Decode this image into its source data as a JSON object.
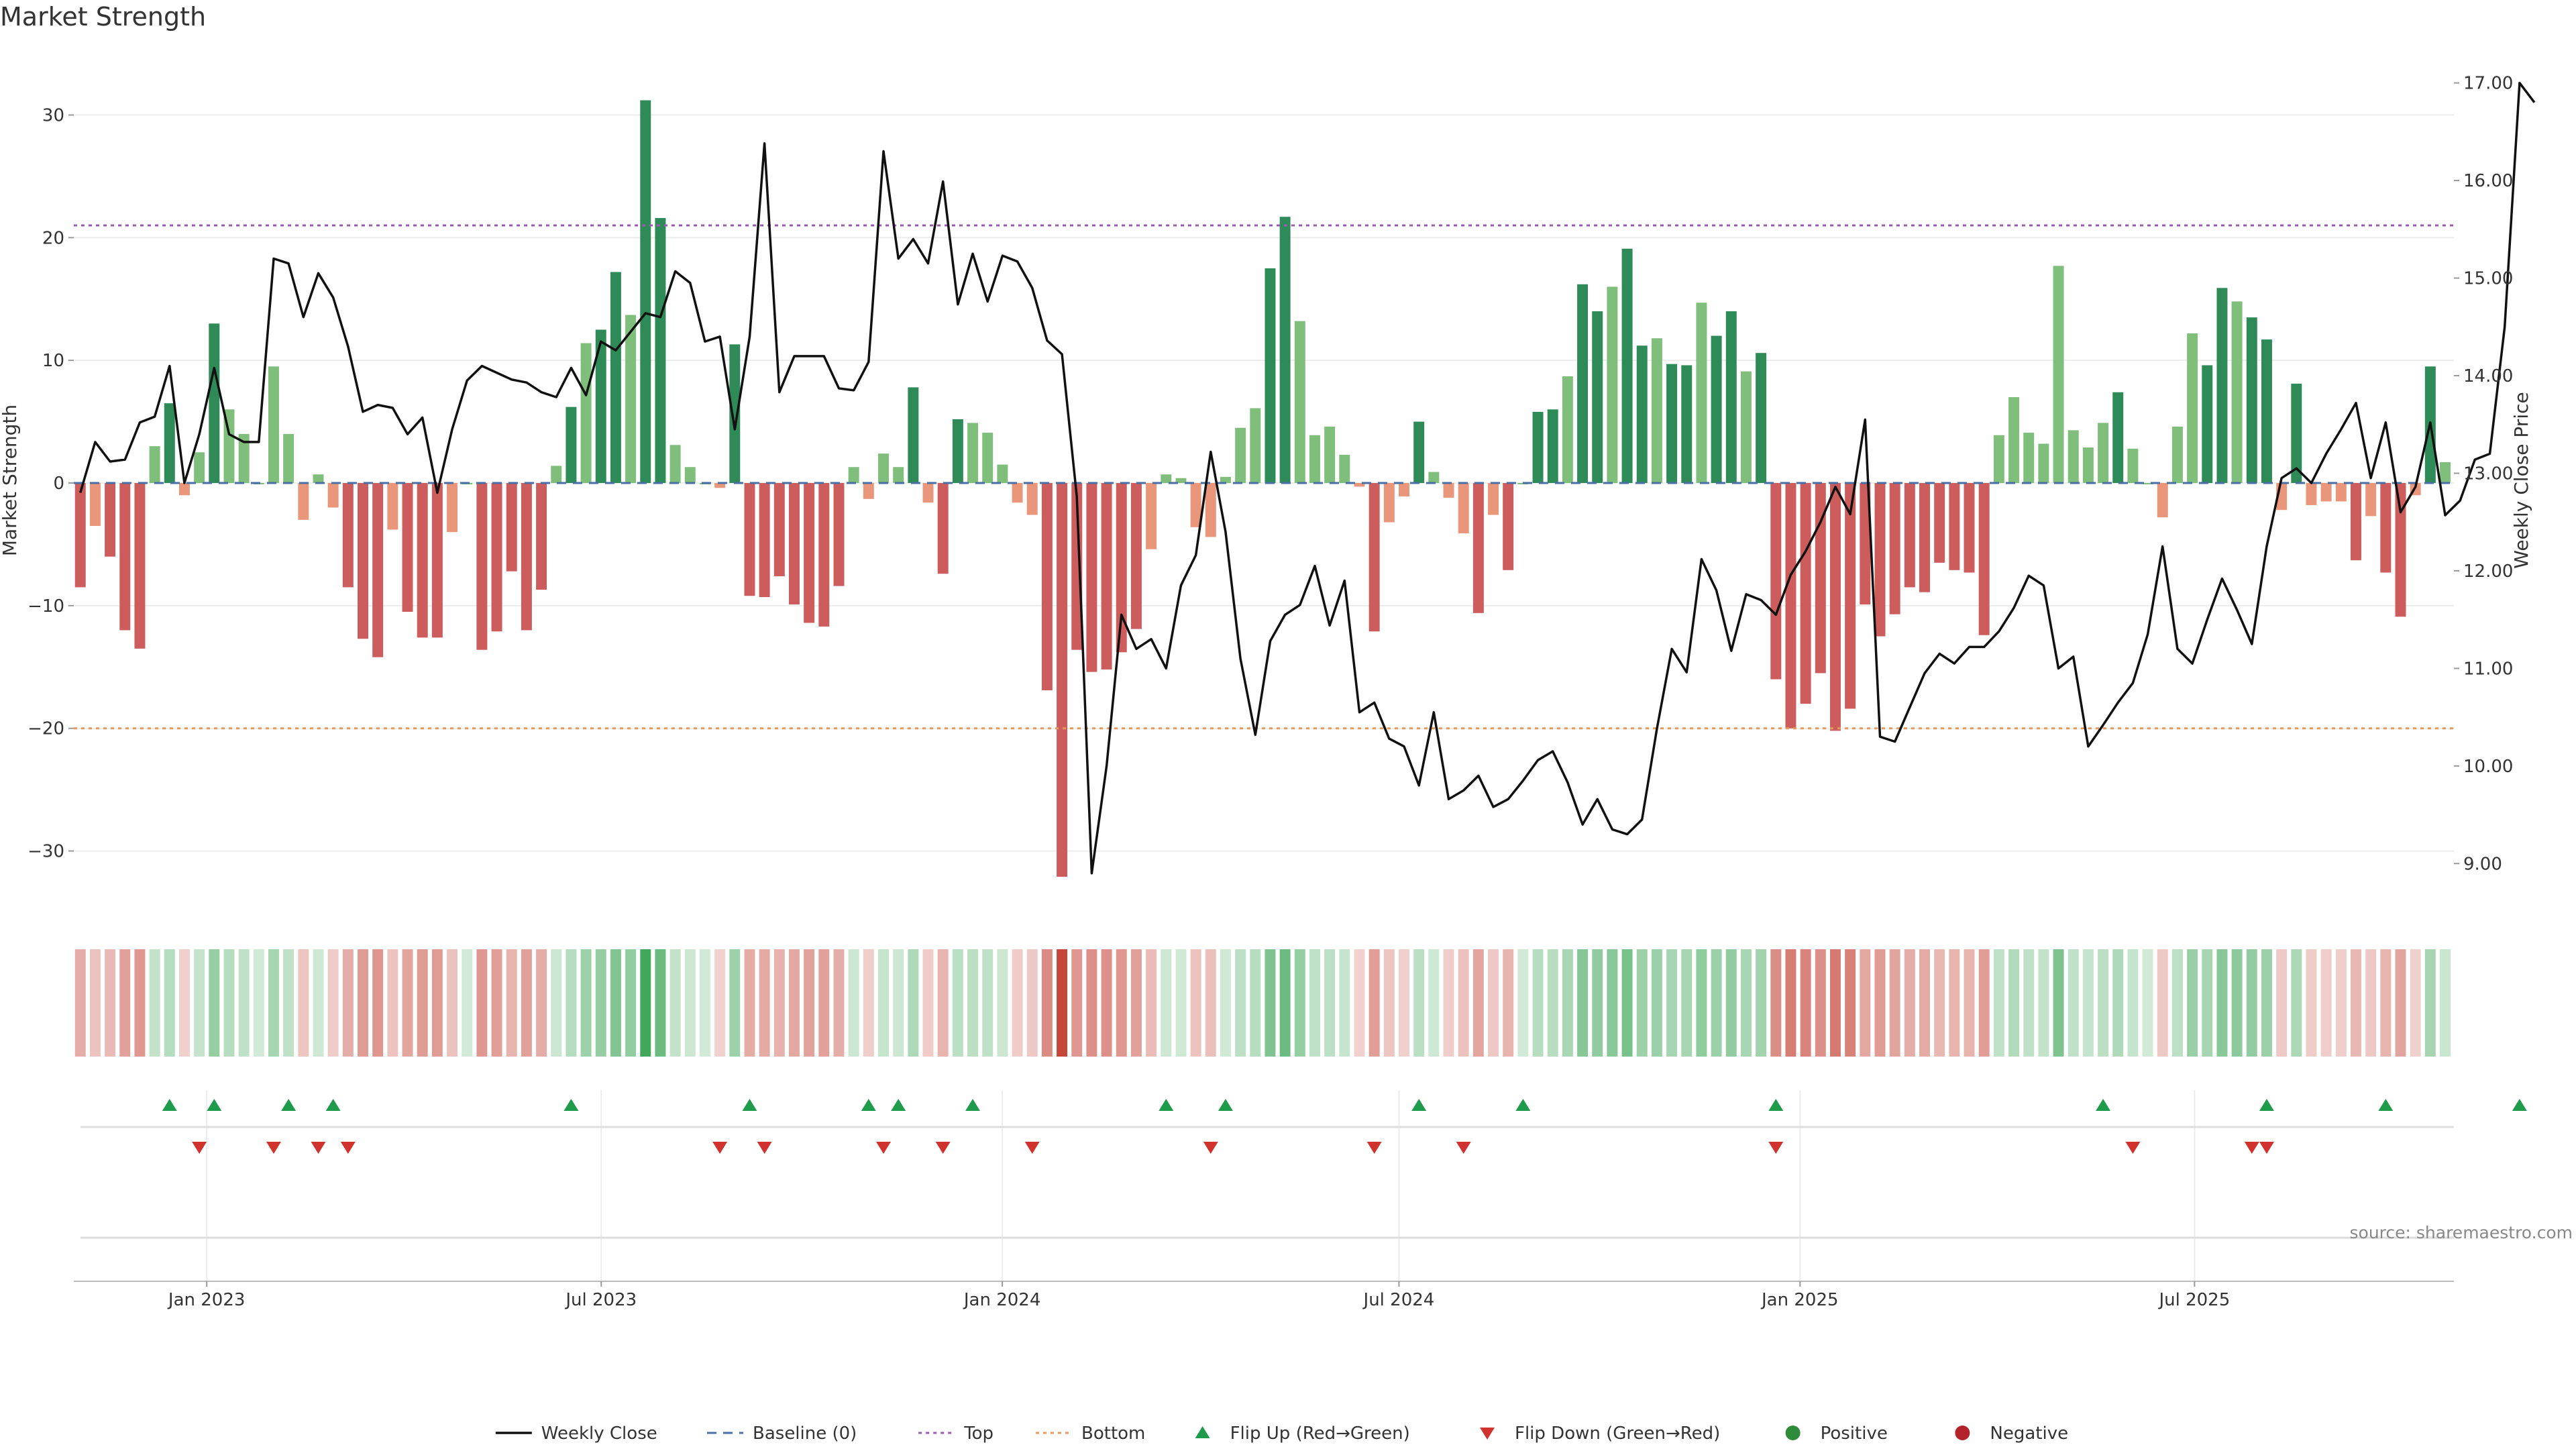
{
  "chart_data": {
    "type": "bar",
    "title": "Market Strength",
    "ylabel": "Market Strength",
    "y2label": "Weekly Close Price",
    "ylim": [
      -35,
      35
    ],
    "y2lim": [
      8.5,
      17.3
    ],
    "yticks": [
      -30,
      -20,
      -10,
      0,
      10,
      20,
      30
    ],
    "yticklabels": [
      "−30",
      "−20",
      "−10",
      "0",
      "10",
      "20",
      "30"
    ],
    "y2ticks": [
      9,
      10,
      11,
      12,
      13,
      14,
      15,
      16,
      17
    ],
    "y2ticklabels": [
      "9.00",
      "10.00",
      "11.00",
      "12.00",
      "13.00",
      "14.00",
      "15.00",
      "16.00",
      "17.00"
    ],
    "x_start": "2022-11-04",
    "x_end": "2025-10-24",
    "x_range": [
      "2022-11-01",
      "2025-10-28"
    ],
    "xticks": [
      {
        "date": "2023-01-01",
        "label": "Jan 2023"
      },
      {
        "date": "2023-07-01",
        "label": "Jul 2023"
      },
      {
        "date": "2024-01-01",
        "label": "Jan 2024"
      },
      {
        "date": "2024-07-01",
        "label": "Jul 2024"
      },
      {
        "date": "2025-01-01",
        "label": "Jan 2025"
      },
      {
        "date": "2025-07-01",
        "label": "Jul 2025"
      }
    ],
    "top_line": 21,
    "bottom_line": -20,
    "strength": [
      -8.5,
      -3.5,
      -6,
      -12,
      -13.5,
      3,
      6.5,
      -1,
      2.5,
      13,
      6,
      4,
      0,
      9.5,
      4,
      -3,
      0.7,
      -2,
      -8.5,
      -12.7,
      -14.2,
      -3.8,
      -10.5,
      -12.6,
      -12.6,
      -4,
      0,
      -13.6,
      -12.1,
      -7.2,
      -12,
      -8.7,
      1.4,
      6.2,
      11.4,
      12.5,
      17.2,
      13.7,
      31.2,
      21.6,
      3.1,
      1.3,
      0,
      -0.4,
      11.3,
      -9.2,
      -9.3,
      -7.6,
      -9.9,
      -11.4,
      -11.7,
      -8.4,
      1.3,
      -1.3,
      2.4,
      1.3,
      7.8,
      -1.6,
      -7.4,
      5.2,
      4.9,
      4.1,
      1.5,
      -1.6,
      -2.6,
      -16.9,
      -32.1,
      -13.6,
      -15.4,
      -15.2,
      -13.8,
      -11.9,
      -5.4,
      0.7,
      0.4,
      -3.6,
      -4.4,
      0.5,
      4.5,
      6.1,
      17.5,
      21.7,
      13.2,
      3.9,
      4.6,
      2.3,
      -0.3,
      -12.1,
      -3.2,
      -1.1,
      5,
      0.9,
      -1.2,
      -4.1,
      -10.6,
      -2.6,
      -7.1,
      0,
      5.8,
      6,
      8.7,
      16.2,
      14,
      16,
      19.1,
      11.2,
      11.8,
      9.7,
      9.6,
      14.7,
      12,
      14,
      9.1,
      10.6,
      -16,
      -20,
      -18,
      -15.5,
      -20.2,
      -18.4,
      -9.9,
      -12.5,
      -10.7,
      -8.5,
      -8.9,
      -6.5,
      -7.1,
      -7.3,
      -12.4,
      3.9,
      7,
      4.1,
      3.2,
      17.7,
      4.3,
      2.9,
      4.9,
      7.4,
      2.8,
      0,
      -2.8,
      4.6,
      12.2,
      9.6,
      15.9,
      14.8,
      13.5,
      11.7,
      -2.2,
      8.1,
      -1.8,
      -1.5,
      -1.5,
      -6.3,
      -2.7,
      -7.3,
      -10.9,
      -1,
      9.5,
      1.7
    ],
    "close": [
      12.8,
      13.32,
      13.12,
      13.14,
      13.52,
      13.58,
      14.1,
      12.9,
      13.4,
      14.08,
      13.4,
      13.32,
      13.32,
      15.2,
      15.15,
      14.6,
      15.05,
      14.8,
      14.3,
      13.63,
      13.7,
      13.67,
      13.4,
      13.57,
      12.8,
      13.45,
      13.95,
      14.1,
      14.03,
      13.96,
      13.93,
      13.83,
      13.78,
      14.08,
      13.8,
      14.35,
      14.26,
      14.45,
      14.64,
      14.6,
      15.07,
      14.95,
      14.35,
      14.4,
      13.45,
      14.4,
      16.38,
      13.83,
      14.2,
      14.2,
      14.2,
      13.87,
      13.85,
      14.14,
      16.3,
      15.2,
      15.4,
      15.15,
      15.99,
      14.73,
      15.25,
      14.76,
      15.23,
      15.17,
      14.9,
      14.36,
      14.22,
      12.76,
      8.9,
      10.0,
      11.55,
      11.2,
      11.3,
      11.0,
      11.85,
      12.16,
      13.22,
      12.4,
      11.1,
      10.32,
      11.28,
      11.55,
      11.65,
      12.05,
      11.44,
      11.9,
      10.55,
      10.65,
      10.28,
      10.2,
      9.8,
      10.55,
      9.66,
      9.75,
      9.9,
      9.58,
      9.66,
      9.85,
      10.06,
      10.15,
      9.83,
      9.4,
      9.66,
      9.35,
      9.3,
      9.45,
      10.38,
      11.2,
      10.96,
      12.12,
      11.8,
      11.18,
      11.76,
      11.7,
      11.55,
      11.96,
      12.2,
      12.5,
      12.86,
      12.58,
      13.55,
      10.3,
      10.25,
      10.6,
      10.95,
      11.15,
      11.05,
      11.22,
      11.22,
      11.38,
      11.62,
      11.95,
      11.85,
      11.0,
      11.12,
      10.2,
      10.42,
      10.65,
      10.85,
      11.35,
      12.25,
      11.2,
      11.05,
      11.5,
      11.92,
      11.6,
      11.25,
      12.25,
      12.95,
      13.05,
      12.9,
      13.2,
      13.45,
      13.72,
      12.95,
      13.52,
      12.6,
      12.86,
      13.52,
      12.57,
      12.72,
      13.14,
      13.2,
      14.5,
      17.0,
      16.8
    ],
    "flip_up": [
      6,
      9,
      14,
      17,
      33,
      45,
      53,
      55,
      60,
      73,
      77,
      90,
      97,
      114,
      136,
      147,
      155,
      164
    ],
    "flip_down": [
      8,
      13,
      16,
      18,
      43,
      46,
      54,
      58,
      64,
      76,
      87,
      93,
      114,
      138,
      146,
      147
    ],
    "legend": [
      {
        "label": "Weekly Close",
        "kind": "line",
        "color": "#111111"
      },
      {
        "label": "Baseline (0)",
        "kind": "dash",
        "color": "#4a6fa5"
      },
      {
        "label": "Top",
        "kind": "dotted",
        "color": "#9b59b6"
      },
      {
        "label": "Bottom",
        "kind": "dotted",
        "color": "#e69a5b"
      },
      {
        "label": "Flip Up (Red→Green)",
        "kind": "up",
        "color": "#1e9c4b"
      },
      {
        "label": "Flip Down (Green→Red)",
        "kind": "down",
        "color": "#d0322e"
      },
      {
        "label": "Positive",
        "kind": "dot",
        "color": "#2e8b3a"
      },
      {
        "label": "Negative",
        "kind": "dot",
        "color": "#b2242a"
      }
    ],
    "legend_position": "bottom-center",
    "colors": {
      "pos_dark": "#2e8b57",
      "pos_light": "#7fbf7b",
      "neg_dark": "#cd5c5c",
      "neg_light": "#e9967a",
      "close": "#111111",
      "baseline": "#4a6fa5",
      "top": "#9b59b6",
      "bottom": "#e69a5b"
    },
    "source": "source: sharemaestro.com"
  }
}
